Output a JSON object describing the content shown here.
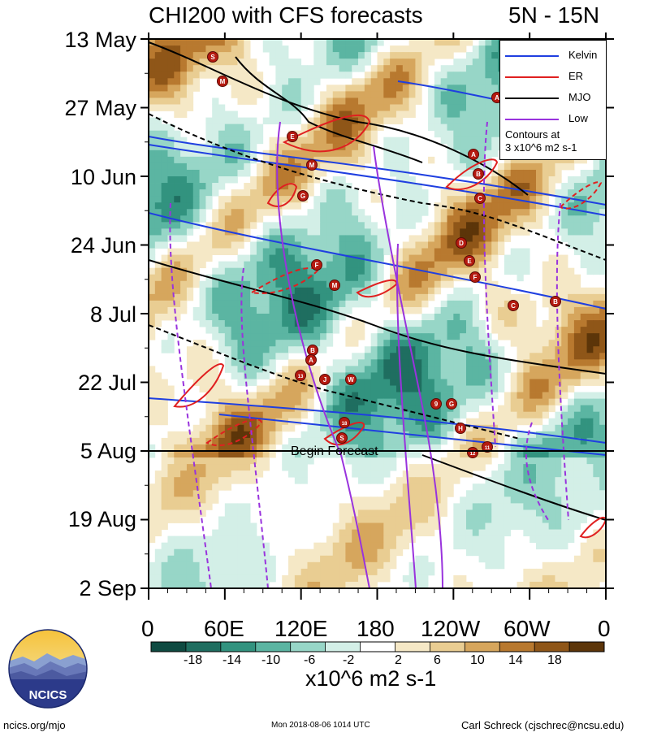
{
  "header": {
    "title": "CHI200 with CFS forecasts",
    "region": "5N - 15N"
  },
  "chart_data": {
    "type": "heatmap",
    "title": "CHI200 with CFS forecasts",
    "subtitle": "5N - 15N",
    "x_ticks": [
      "0",
      "60E",
      "120E",
      "180",
      "120W",
      "60W",
      "0"
    ],
    "y_ticks": [
      "13 May",
      "27 May",
      "10 Jun",
      "24 Jun",
      "8 Jul",
      "22 Jul",
      "5 Aug",
      "19 Aug",
      "2 Sep"
    ],
    "colorbar": {
      "labels": [
        "-18",
        "-14",
        "-10",
        "-6",
        "-2",
        "2",
        "6",
        "10",
        "14",
        "18"
      ],
      "colors": [
        "#0e4a41",
        "#1f6e60",
        "#32937f",
        "#5bb5a2",
        "#97d6c7",
        "#d3efe7",
        "#ffffff",
        "#f5e8c6",
        "#e9cd92",
        "#d6a65d",
        "#b8792f",
        "#8f5618",
        "#5c3509"
      ],
      "units": "x10^6 m2 s-1"
    },
    "legend": [
      {
        "name": "Kelvin",
        "color": "#1f3fe0"
      },
      {
        "name": "ER",
        "color": "#e02020"
      },
      {
        "name": "MJO",
        "color": "#000000"
      },
      {
        "name": "Low",
        "color": "#9933dd"
      }
    ],
    "contours_note": [
      "Contours at",
      "3 x10^6 m2 s-1"
    ],
    "annotation": "Begin Forecast",
    "storms": [
      {
        "label": "S"
      },
      {
        "label": "M"
      },
      {
        "label": "A"
      },
      {
        "label": "E"
      },
      {
        "label": "M"
      },
      {
        "label": "A"
      },
      {
        "label": "B"
      },
      {
        "label": "G"
      },
      {
        "label": "C"
      },
      {
        "label": "D"
      },
      {
        "label": "E"
      },
      {
        "label": "F"
      },
      {
        "label": "F"
      },
      {
        "label": "M"
      },
      {
        "label": "C"
      },
      {
        "label": "B"
      },
      {
        "label": "B"
      },
      {
        "label": "A"
      },
      {
        "label": "13"
      },
      {
        "label": "J"
      },
      {
        "label": "W"
      },
      {
        "label": "9"
      },
      {
        "label": "G"
      },
      {
        "label": "H"
      },
      {
        "label": "18"
      },
      {
        "label": "S"
      },
      {
        "label": "12"
      },
      {
        "label": "11"
      }
    ]
  },
  "footer": {
    "logo_text": "NCICS",
    "left": "ncics.org/mjo",
    "center": "Mon 2018-08-06 1014 UTC",
    "right": "Carl Schreck (cjschrec@ncsu.edu)"
  }
}
